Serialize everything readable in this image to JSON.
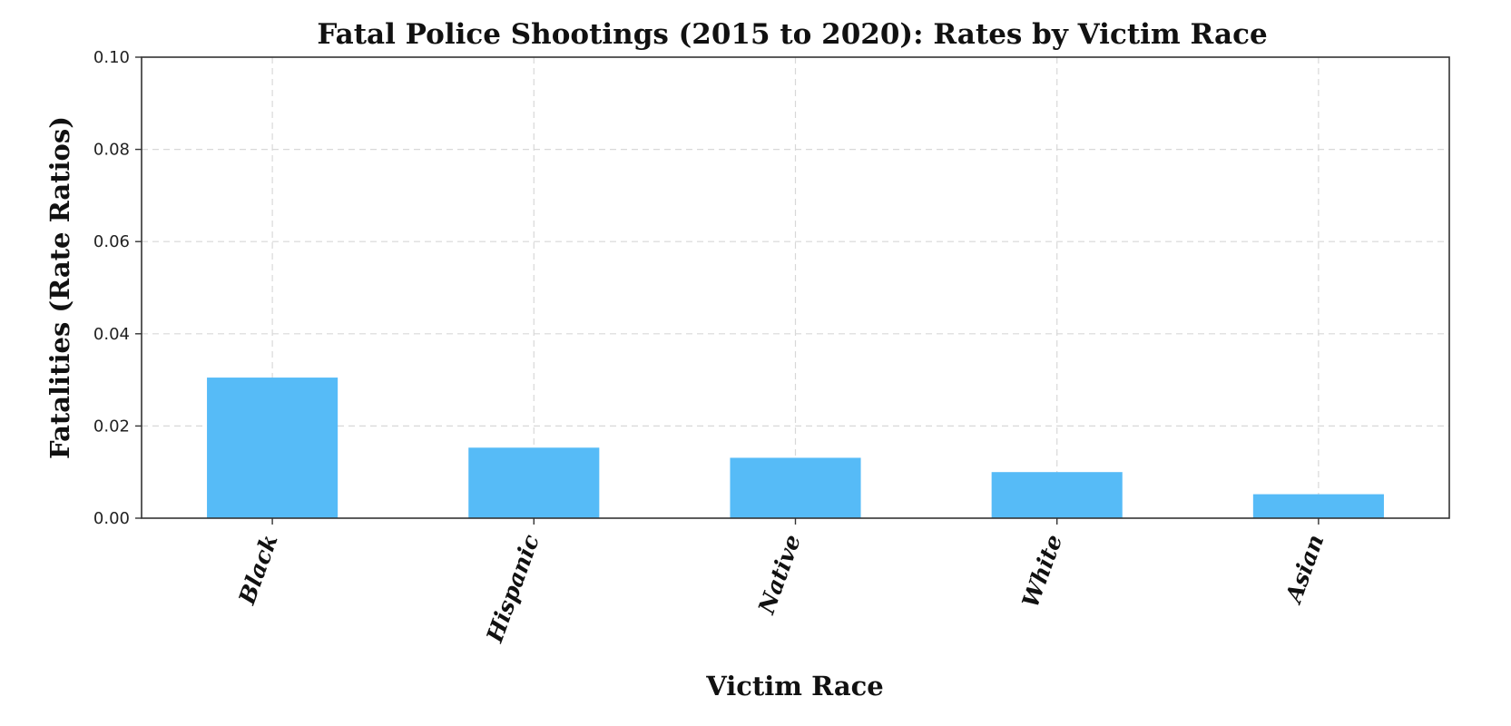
{
  "chart_data": {
    "type": "bar",
    "title": "Fatal Police Shootings (2015 to 2020): Rates by Victim Race",
    "xlabel": "Victim Race",
    "ylabel": "Fatalities (Rate Ratios)",
    "categories": [
      "Black",
      "Hispanic",
      "Native",
      "White",
      "Asian"
    ],
    "values": [
      0.0305,
      0.0153,
      0.0131,
      0.01,
      0.0052
    ],
    "ylim": [
      0,
      0.1
    ],
    "yticks": [
      0.0,
      0.02,
      0.04,
      0.06,
      0.08,
      0.1
    ],
    "ytick_labels": [
      "0.00",
      "0.02",
      "0.04",
      "0.06",
      "0.08",
      "0.10"
    ],
    "grid": true,
    "legend": "none",
    "bar_color": "#56bbf7"
  }
}
